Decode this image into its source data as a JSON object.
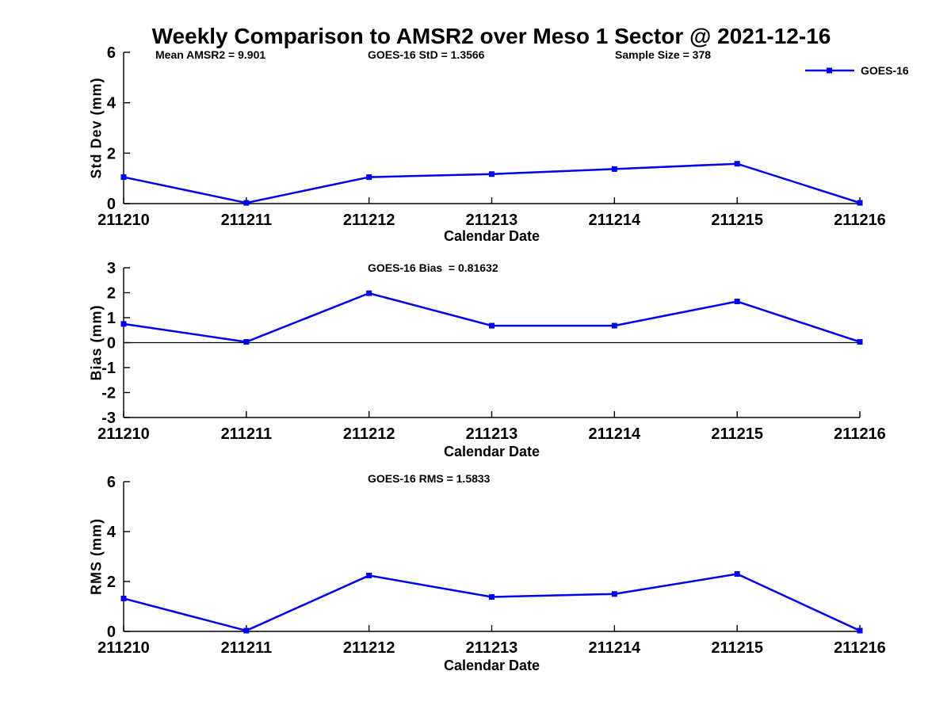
{
  "figure": {
    "title": "Weekly Comparison to AMSR2 over Meso 1 Sector @ 2021-12-16",
    "background_color": "#ffffff",
    "line_color": "#0000EE",
    "axis_color": "#000000",
    "legend": {
      "label": "GOES-16",
      "marker": "filled-square",
      "position": "top-right-outside"
    }
  },
  "chart_data": [
    {
      "type": "line",
      "series_name": "GOES-16",
      "title": "",
      "ylabel": "Std Dev (mm)",
      "xlabel": "Calendar Date",
      "categories": [
        "211210",
        "211211",
        "211212",
        "211213",
        "211214",
        "211215",
        "211216"
      ],
      "values": [
        1.05,
        0.03,
        1.05,
        1.17,
        1.37,
        1.58,
        0.03
      ],
      "ylim": [
        0,
        6
      ],
      "yticks": [
        0,
        2,
        4,
        6
      ],
      "grid": false,
      "zero_line": false,
      "annotations": [
        "Mean AMSR2 = 9.901",
        "GOES-16 StD = 1.3566",
        "Sample Size = 378"
      ]
    },
    {
      "type": "line",
      "series_name": "GOES-16",
      "title": "",
      "ylabel": "Bias (mm)",
      "xlabel": "Calendar Date",
      "categories": [
        "211210",
        "211211",
        "211212",
        "211213",
        "211214",
        "211215",
        "211216"
      ],
      "values": [
        0.75,
        0.03,
        1.98,
        0.68,
        0.68,
        1.65,
        0.03
      ],
      "ylim": [
        -3,
        3
      ],
      "yticks": [
        -3,
        -2,
        -1,
        0,
        1,
        2,
        3
      ],
      "grid": false,
      "zero_line": true,
      "annotations": [
        "GOES-16 Bias  = 0.81632"
      ]
    },
    {
      "type": "line",
      "series_name": "GOES-16",
      "title": "",
      "ylabel": "RMS (mm)",
      "xlabel": "Calendar Date",
      "categories": [
        "211210",
        "211211",
        "211212",
        "211213",
        "211214",
        "211215",
        "211216"
      ],
      "values": [
        1.32,
        0.03,
        2.24,
        1.38,
        1.5,
        2.3,
        0.03
      ],
      "ylim": [
        0,
        6
      ],
      "yticks": [
        0,
        2,
        4,
        6
      ],
      "grid": false,
      "zero_line": false,
      "annotations": [
        "GOES-16 RMS = 1.5833"
      ]
    }
  ]
}
